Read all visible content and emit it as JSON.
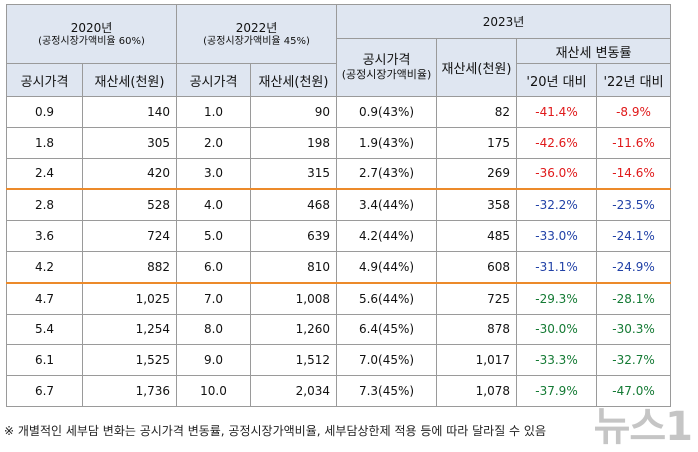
{
  "headers": {
    "y2020": "2020년",
    "y2020_sub": "(공정시장가액비율 60%)",
    "y2022": "2022년",
    "y2022_sub": "(공정시장가액비율 45%)",
    "y2023": "2023년",
    "official_price": "공시가격",
    "property_tax": "재산세(천원)",
    "official_price_2023": "공시가격",
    "official_price_2023_sub": "(공정시장가액비율)",
    "tax_change": "재산세 변동률",
    "vs20": "'20년 대비",
    "vs22": "'22년 대비"
  },
  "rows": [
    {
      "p20": "0.9",
      "t20": "140",
      "p22": "1.0",
      "t22": "90",
      "p23": "0.9(43%)",
      "t23": "82",
      "c20": "-41.4%",
      "c22": "-8.9%",
      "c20_color": "#e0191a",
      "c22_color": "#e0191a"
    },
    {
      "p20": "1.8",
      "t20": "305",
      "p22": "2.0",
      "t22": "198",
      "p23": "1.9(43%)",
      "t23": "175",
      "c20": "-42.6%",
      "c22": "-11.6%",
      "c20_color": "#e0191a",
      "c22_color": "#e0191a"
    },
    {
      "p20": "2.4",
      "t20": "420",
      "p22": "3.0",
      "t22": "315",
      "p23": "2.7(43%)",
      "t23": "269",
      "c20": "-36.0%",
      "c22": "-14.6%",
      "c20_color": "#e0191a",
      "c22_color": "#e0191a"
    },
    {
      "p20": "2.8",
      "t20": "528",
      "p22": "4.0",
      "t22": "468",
      "p23": "3.4(44%)",
      "t23": "358",
      "c20": "-32.2%",
      "c22": "-23.5%",
      "c20_color": "#2242a7",
      "c22_color": "#2242a7"
    },
    {
      "p20": "3.6",
      "t20": "724",
      "p22": "5.0",
      "t22": "639",
      "p23": "4.2(44%)",
      "t23": "485",
      "c20": "-33.0%",
      "c22": "-24.1%",
      "c20_color": "#2242a7",
      "c22_color": "#2242a7"
    },
    {
      "p20": "4.2",
      "t20": "882",
      "p22": "6.0",
      "t22": "810",
      "p23": "4.9(44%)",
      "t23": "608",
      "c20": "-31.1%",
      "c22": "-24.9%",
      "c20_color": "#2242a7",
      "c22_color": "#2242a7"
    },
    {
      "p20": "4.7",
      "t20": "1,025",
      "p22": "7.0",
      "t22": "1,008",
      "p23": "5.6(44%)",
      "t23": "725",
      "c20": "-29.3%",
      "c22": "-28.1%",
      "c20_color": "#147a34",
      "c22_color": "#147a34"
    },
    {
      "p20": "5.4",
      "t20": "1,254",
      "p22": "8.0",
      "t22": "1,260",
      "p23": "6.4(45%)",
      "t23": "878",
      "c20": "-30.0%",
      "c22": "-30.3%",
      "c20_color": "#147a34",
      "c22_color": "#147a34"
    },
    {
      "p20": "6.1",
      "t20": "1,525",
      "p22": "9.0",
      "t22": "1,512",
      "p23": "7.0(45%)",
      "t23": "1,017",
      "c20": "-33.3%",
      "c22": "-32.7%",
      "c20_color": "#147a34",
      "c22_color": "#147a34"
    },
    {
      "p20": "6.7",
      "t20": "1,736",
      "p22": "10.0",
      "t22": "2,034",
      "p23": "7.3(45%)",
      "t23": "1,078",
      "c20": "-37.9%",
      "c22": "-47.0%",
      "c20_color": "#147a34",
      "c22_color": "#147a34"
    }
  ],
  "group_separator_before_rows": [
    3,
    6
  ],
  "footnote": "※ 개별적인 세부담 변화는 공시가격 변동률, 공정시장가액비율, 세부담상한제 적용 등에 따라 달라질 수 있음",
  "watermark": "뉴스1"
}
